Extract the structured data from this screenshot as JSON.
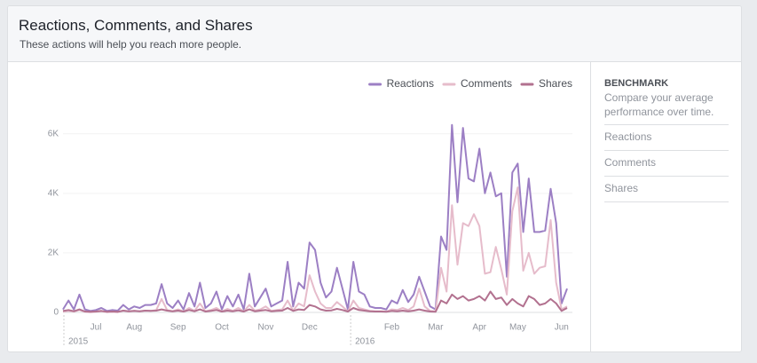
{
  "header": {
    "title": "Reactions, Comments, and Shares",
    "subtitle": "These actions will help you reach more people."
  },
  "sidebar": {
    "title": "BENCHMARK",
    "description": "Compare your average performance over time.",
    "items": [
      "Reactions",
      "Comments",
      "Shares"
    ]
  },
  "chart_data": {
    "type": "line",
    "categories": [
      null,
      null,
      null,
      null,
      null,
      null,
      "Jul",
      null,
      null,
      null,
      null,
      null,
      null,
      "Aug",
      null,
      null,
      null,
      null,
      null,
      null,
      null,
      "Sep",
      null,
      null,
      null,
      null,
      null,
      null,
      null,
      "Oct",
      null,
      null,
      null,
      null,
      null,
      null,
      null,
      "Nov",
      null,
      null,
      null,
      null,
      null,
      null,
      null,
      "Dec",
      null,
      null,
      null,
      null,
      null,
      null,
      null,
      null,
      null,
      null,
      null,
      null,
      null,
      null,
      "Feb",
      null,
      null,
      null,
      null,
      null,
      null,
      null,
      "Mar",
      null,
      null,
      null,
      null,
      null,
      null,
      null,
      "Apr",
      null,
      null,
      null,
      null,
      null,
      null,
      "May",
      null,
      null,
      null,
      null,
      null,
      null,
      null,
      "Jun",
      null
    ],
    "year_labels": [
      "2015",
      "2016"
    ],
    "series": [
      {
        "name": "Reactions",
        "color": "#9c7fc4",
        "values": [
          100,
          400,
          100,
          600,
          100,
          50,
          80,
          150,
          50,
          80,
          60,
          250,
          100,
          200,
          150,
          250,
          250,
          300,
          950,
          300,
          150,
          400,
          100,
          650,
          200,
          1000,
          150,
          300,
          700,
          100,
          550,
          200,
          600,
          100,
          1300,
          200,
          500,
          800,
          200,
          300,
          400,
          1700,
          200,
          1000,
          800,
          2350,
          2100,
          1000,
          500,
          700,
          1500,
          800,
          100,
          1700,
          700,
          600,
          200,
          150,
          150,
          100,
          400,
          300,
          750,
          350,
          600,
          1200,
          700,
          200,
          100,
          2550,
          2100,
          6300,
          3700,
          6200,
          4500,
          4400,
          5500,
          4000,
          4700,
          3900,
          4000,
          1200,
          4700,
          5000,
          2700,
          4500,
          2700,
          2700,
          2750,
          4150,
          3000,
          300,
          800
        ]
      },
      {
        "name": "Comments",
        "color": "#e6bccb",
        "values": [
          20,
          50,
          30,
          80,
          20,
          10,
          20,
          40,
          10,
          20,
          10,
          60,
          30,
          50,
          40,
          60,
          50,
          80,
          450,
          80,
          40,
          100,
          30,
          150,
          50,
          300,
          40,
          80,
          150,
          30,
          120,
          50,
          150,
          30,
          250,
          60,
          100,
          200,
          50,
          80,
          100,
          400,
          60,
          300,
          200,
          1250,
          700,
          300,
          150,
          150,
          350,
          200,
          30,
          400,
          150,
          100,
          50,
          40,
          40,
          30,
          100,
          80,
          150,
          80,
          200,
          800,
          200,
          50,
          30,
          1500,
          700,
          3600,
          1600,
          3000,
          2900,
          3300,
          2900,
          1300,
          1350,
          2200,
          1450,
          600,
          3400,
          4200,
          1400,
          2000,
          1300,
          1500,
          1550,
          3100,
          1000,
          100,
          200
        ]
      },
      {
        "name": "Shares",
        "color": "#b2718f",
        "values": [
          50,
          80,
          40,
          100,
          30,
          20,
          30,
          50,
          20,
          30,
          20,
          60,
          40,
          50,
          40,
          60,
          50,
          60,
          100,
          60,
          40,
          60,
          30,
          80,
          40,
          100,
          30,
          50,
          80,
          30,
          60,
          40,
          70,
          30,
          100,
          40,
          60,
          80,
          40,
          50,
          60,
          150,
          50,
          100,
          80,
          250,
          200,
          100,
          60,
          70,
          120,
          80,
          30,
          150,
          80,
          60,
          40,
          30,
          30,
          20,
          50,
          40,
          60,
          40,
          60,
          100,
          60,
          30,
          20,
          400,
          300,
          600,
          450,
          550,
          400,
          450,
          550,
          400,
          700,
          450,
          500,
          250,
          450,
          300,
          200,
          550,
          450,
          250,
          300,
          450,
          300,
          50,
          150
        ]
      }
    ],
    "ylim": [
      0,
      6500
    ],
    "yticks": [
      0,
      {
        "value": 2000,
        "label": "2K"
      },
      {
        "value": 4000,
        "label": "4K"
      },
      {
        "value": 6000,
        "label": "6K"
      }
    ],
    "grid": true,
    "legend": "top-right"
  }
}
